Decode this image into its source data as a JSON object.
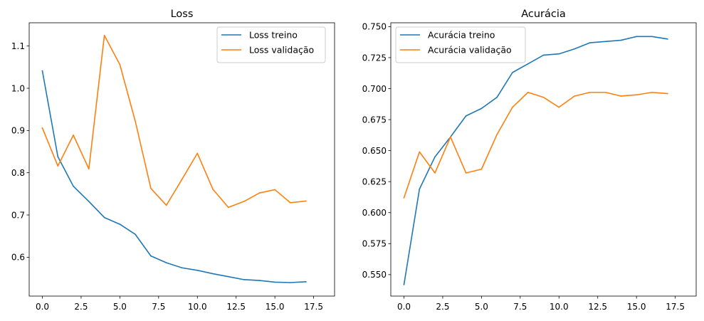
{
  "chart_data": [
    {
      "type": "line",
      "title": "Loss",
      "xlabel": "",
      "ylabel": "",
      "xlim": [
        -0.85,
        18.85
      ],
      "ylim": [
        0.508,
        1.155
      ],
      "xticks": [
        0.0,
        2.5,
        5.0,
        7.5,
        10.0,
        12.5,
        15.0,
        17.5
      ],
      "xtick_labels": [
        "0.0",
        "2.5",
        "5.0",
        "7.5",
        "10.0",
        "12.5",
        "15.0",
        "17.5"
      ],
      "yticks": [
        0.6,
        0.7,
        0.8,
        0.9,
        1.0,
        1.1
      ],
      "ytick_labels": [
        "0.6",
        "0.7",
        "0.8",
        "0.9",
        "1.0",
        "1.1"
      ],
      "grid": false,
      "legend_position": "top-right",
      "x": [
        0,
        1,
        2,
        3,
        4,
        5,
        6,
        7,
        8,
        9,
        10,
        11,
        12,
        13,
        14,
        15,
        16,
        17
      ],
      "series": [
        {
          "name": "Loss treino",
          "color": "#1f77b4",
          "values": [
            1.041,
            0.838,
            0.768,
            0.732,
            0.694,
            0.678,
            0.654,
            0.603,
            0.587,
            0.575,
            0.569,
            0.561,
            0.554,
            0.547,
            0.545,
            0.541,
            0.54,
            0.542
          ]
        },
        {
          "name": "Loss validação",
          "color": "#ff7f0e",
          "values": [
            0.906,
            0.816,
            0.889,
            0.809,
            1.125,
            1.056,
            0.921,
            0.763,
            0.723,
            0.784,
            0.846,
            0.761,
            0.718,
            0.732,
            0.752,
            0.76,
            0.729,
            0.733
          ]
        }
      ]
    },
    {
      "type": "line",
      "title": "Acurácia",
      "xlabel": "",
      "ylabel": "",
      "xlim": [
        -0.85,
        18.85
      ],
      "ylim": [
        0.5327,
        0.7531
      ],
      "xticks": [
        0.0,
        2.5,
        5.0,
        7.5,
        10.0,
        12.5,
        15.0,
        17.5
      ],
      "xtick_labels": [
        "0.0",
        "2.5",
        "5.0",
        "7.5",
        "10.0",
        "12.5",
        "15.0",
        "17.5"
      ],
      "yticks": [
        0.55,
        0.575,
        0.6,
        0.625,
        0.65,
        0.675,
        0.7,
        0.725,
        0.75
      ],
      "ytick_labels": [
        "0.550",
        "0.575",
        "0.600",
        "0.625",
        "0.650",
        "0.675",
        "0.700",
        "0.725",
        "0.750"
      ],
      "grid": false,
      "legend_position": "top-left",
      "x": [
        0,
        1,
        2,
        3,
        4,
        5,
        6,
        7,
        8,
        9,
        10,
        11,
        12,
        13,
        14,
        15,
        16,
        17
      ],
      "series": [
        {
          "name": "Acurácia treino",
          "color": "#1f77b4",
          "values": [
            0.542,
            0.619,
            0.645,
            0.661,
            0.678,
            0.684,
            0.693,
            0.713,
            0.72,
            0.727,
            0.728,
            0.732,
            0.737,
            0.738,
            0.739,
            0.742,
            0.742,
            0.74
          ]
        },
        {
          "name": "Acurácia validação",
          "color": "#ff7f0e",
          "values": [
            0.612,
            0.649,
            0.632,
            0.661,
            0.632,
            0.635,
            0.663,
            0.685,
            0.697,
            0.693,
            0.685,
            0.694,
            0.697,
            0.697,
            0.694,
            0.695,
            0.697,
            0.696
          ]
        }
      ]
    }
  ]
}
